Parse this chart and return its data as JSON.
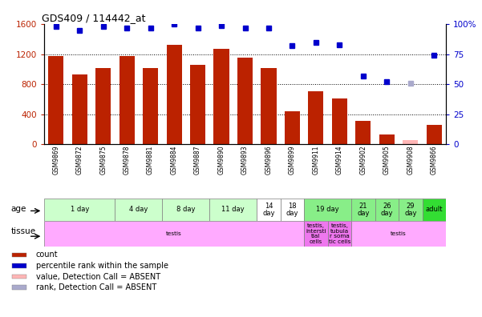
{
  "title": "GDS409 / 114442_at",
  "samples": [
    "GSM9869",
    "GSM9872",
    "GSM9875",
    "GSM9878",
    "GSM9881",
    "GSM9884",
    "GSM9887",
    "GSM9890",
    "GSM9893",
    "GSM9896",
    "GSM9899",
    "GSM9911",
    "GSM9914",
    "GSM9902",
    "GSM9905",
    "GSM9908",
    "GSM9866"
  ],
  "bar_values": [
    1170,
    930,
    1010,
    1175,
    1010,
    1320,
    1060,
    1270,
    1155,
    1010,
    435,
    700,
    610,
    310,
    130,
    55,
    255
  ],
  "bar_absent": [
    false,
    false,
    false,
    false,
    false,
    false,
    false,
    false,
    false,
    false,
    false,
    false,
    false,
    false,
    false,
    true,
    false
  ],
  "dot_values": [
    98,
    95,
    98,
    97,
    97,
    100,
    97,
    99,
    97,
    97,
    82,
    85,
    83,
    57,
    52,
    51,
    74
  ],
  "dot_absent": [
    false,
    false,
    false,
    false,
    false,
    false,
    false,
    false,
    false,
    false,
    false,
    false,
    false,
    false,
    false,
    true,
    false
  ],
  "ylim_left": [
    0,
    1600
  ],
  "ylim_right": [
    0,
    100
  ],
  "yticks_left": [
    0,
    400,
    800,
    1200,
    1600
  ],
  "yticks_right": [
    0,
    25,
    50,
    75,
    100
  ],
  "bar_color": "#BB2200",
  "bar_absent_color": "#FFB6B6",
  "dot_color": "#0000CC",
  "dot_absent_color": "#AAAACC",
  "age_groups": [
    {
      "label": "1 day",
      "start": 0,
      "end": 2,
      "color": "#CCFFCC"
    },
    {
      "label": "4 day",
      "start": 3,
      "end": 4,
      "color": "#CCFFCC"
    },
    {
      "label": "8 day",
      "start": 5,
      "end": 6,
      "color": "#CCFFCC"
    },
    {
      "label": "11 day",
      "start": 7,
      "end": 8,
      "color": "#CCFFCC"
    },
    {
      "label": "14\nday",
      "start": 9,
      "end": 9,
      "color": "#FFFFFF"
    },
    {
      "label": "18\nday",
      "start": 10,
      "end": 10,
      "color": "#FFFFFF"
    },
    {
      "label": "19 day",
      "start": 11,
      "end": 12,
      "color": "#88EE88"
    },
    {
      "label": "21\nday",
      "start": 13,
      "end": 13,
      "color": "#88EE88"
    },
    {
      "label": "26\nday",
      "start": 14,
      "end": 14,
      "color": "#88EE88"
    },
    {
      "label": "29\nday",
      "start": 15,
      "end": 15,
      "color": "#88EE88"
    },
    {
      "label": "adult",
      "start": 16,
      "end": 16,
      "color": "#33DD33"
    }
  ],
  "tissue_groups": [
    {
      "label": "testis",
      "start": 0,
      "end": 10,
      "color": "#FFAAFF"
    },
    {
      "label": "testis,\nintersti\ntial\ncells",
      "start": 11,
      "end": 11,
      "color": "#EE77EE"
    },
    {
      "label": "testis,\ntubula\nr soma\ntic cells",
      "start": 12,
      "end": 12,
      "color": "#EE77EE"
    },
    {
      "label": "testis",
      "start": 13,
      "end": 16,
      "color": "#FFAAFF"
    }
  ],
  "legend_items": [
    {
      "label": "count",
      "color": "#BB2200"
    },
    {
      "label": "percentile rank within the sample",
      "color": "#0000CC"
    },
    {
      "label": "value, Detection Call = ABSENT",
      "color": "#FFB6B6"
    },
    {
      "label": "rank, Detection Call = ABSENT",
      "color": "#AAAACC"
    }
  ],
  "chart_bg": "#FFFFFF",
  "grid_color": "black",
  "grid_style": ":",
  "grid_lw": 0.7
}
